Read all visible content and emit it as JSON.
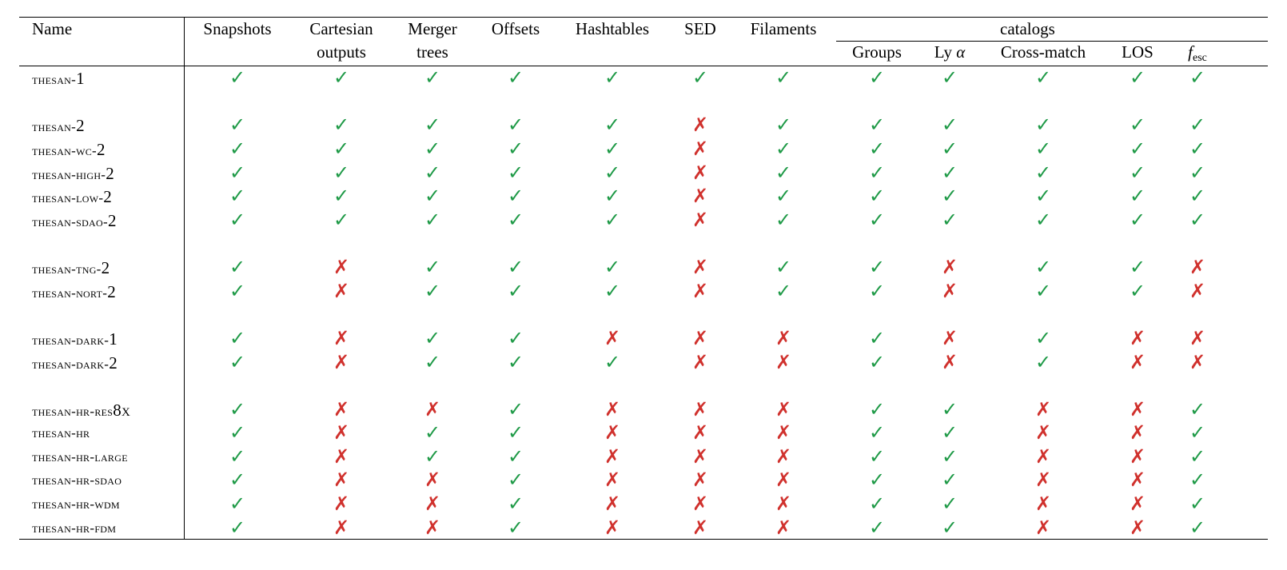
{
  "table": {
    "group_header": "catalogs",
    "columns": [
      {
        "id": "snapshots",
        "line1": "Snapshots",
        "line2": ""
      },
      {
        "id": "cartesian",
        "line1": "Cartesian",
        "line2": "outputs"
      },
      {
        "id": "merger",
        "line1": "Merger",
        "line2": "trees"
      },
      {
        "id": "offsets",
        "line1": "Offsets",
        "line2": ""
      },
      {
        "id": "hashtables",
        "line1": "Hashtables",
        "line2": ""
      },
      {
        "id": "sed",
        "line1": "SED",
        "line2": ""
      },
      {
        "id": "filaments",
        "line1": "Filaments",
        "line2": ""
      },
      {
        "id": "groups",
        "line1": "",
        "line2": "Groups"
      },
      {
        "id": "lya",
        "line1": "",
        "line2": "Ly",
        "line2_greek": "α"
      },
      {
        "id": "crossmatch",
        "line1": "",
        "line2": "Cross-match"
      },
      {
        "id": "los",
        "line1": "",
        "line2": "LOS"
      },
      {
        "id": "fesc",
        "line1": "",
        "line2": "f",
        "line2_sub": "esc"
      }
    ],
    "name_header": "Name",
    "symbols": {
      "yes": "✓",
      "no": "✗"
    },
    "colors": {
      "yes": "#1f9a47",
      "no": "#d0312d"
    },
    "rows": [
      {
        "name": "thesan-",
        "num": "1",
        "values": [
          1,
          1,
          1,
          1,
          1,
          1,
          1,
          1,
          1,
          1,
          1,
          1
        ]
      },
      {
        "name": "thesan-",
        "num": "2",
        "values": [
          1,
          1,
          1,
          1,
          1,
          0,
          1,
          1,
          1,
          1,
          1,
          1
        ]
      },
      {
        "name": "thesan-wc-",
        "num": "2",
        "values": [
          1,
          1,
          1,
          1,
          1,
          0,
          1,
          1,
          1,
          1,
          1,
          1
        ]
      },
      {
        "name": "thesan-high-",
        "num": "2",
        "values": [
          1,
          1,
          1,
          1,
          1,
          0,
          1,
          1,
          1,
          1,
          1,
          1
        ]
      },
      {
        "name": "thesan-low-",
        "num": "2",
        "values": [
          1,
          1,
          1,
          1,
          1,
          0,
          1,
          1,
          1,
          1,
          1,
          1
        ]
      },
      {
        "name": "thesan-sdao-",
        "num": "2",
        "values": [
          1,
          1,
          1,
          1,
          1,
          0,
          1,
          1,
          1,
          1,
          1,
          1
        ]
      },
      {
        "name": "thesan-tng-",
        "num": "2",
        "values": [
          1,
          0,
          1,
          1,
          1,
          0,
          1,
          1,
          0,
          1,
          1,
          0
        ]
      },
      {
        "name": "thesan-nort-",
        "num": "2",
        "values": [
          1,
          0,
          1,
          1,
          1,
          0,
          1,
          1,
          0,
          1,
          1,
          0
        ]
      },
      {
        "name": "thesan-dark-",
        "num": "1",
        "values": [
          1,
          0,
          1,
          1,
          0,
          0,
          0,
          1,
          0,
          1,
          0,
          0
        ]
      },
      {
        "name": "thesan-dark-",
        "num": "2",
        "values": [
          1,
          0,
          1,
          1,
          1,
          0,
          0,
          1,
          0,
          1,
          0,
          0
        ]
      },
      {
        "name": "thesan-hr-res",
        "num": "8x",
        "values": [
          1,
          0,
          0,
          1,
          0,
          0,
          0,
          1,
          1,
          0,
          0,
          1
        ]
      },
      {
        "name": "thesan-hr",
        "num": "",
        "values": [
          1,
          0,
          1,
          1,
          0,
          0,
          0,
          1,
          1,
          0,
          0,
          1
        ]
      },
      {
        "name": "thesan-hr-large",
        "num": "",
        "values": [
          1,
          0,
          1,
          1,
          0,
          0,
          0,
          1,
          1,
          0,
          0,
          1
        ]
      },
      {
        "name": "thesan-hr-sdao",
        "num": "",
        "values": [
          1,
          0,
          0,
          1,
          0,
          0,
          0,
          1,
          1,
          0,
          0,
          1
        ]
      },
      {
        "name": "thesan-hr-wdm",
        "num": "",
        "values": [
          1,
          0,
          0,
          1,
          0,
          0,
          0,
          1,
          1,
          0,
          0,
          1
        ]
      },
      {
        "name": "thesan-hr-fdm",
        "num": "",
        "values": [
          1,
          0,
          0,
          1,
          0,
          0,
          0,
          1,
          1,
          0,
          0,
          1
        ]
      }
    ]
  }
}
